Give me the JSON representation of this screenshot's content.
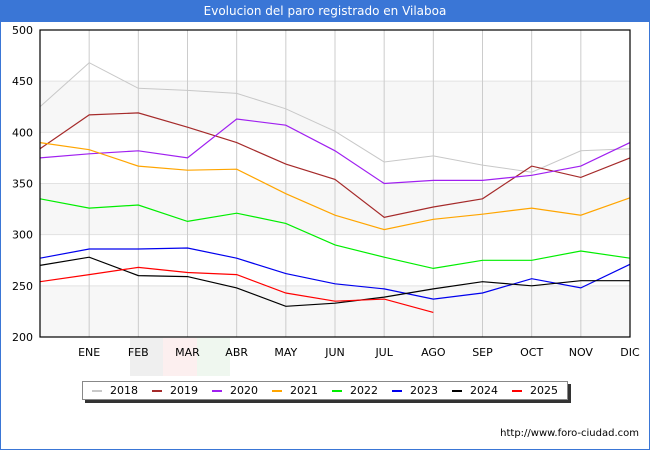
{
  "title": "Evolucion del paro registrado en Vilaboa",
  "source_text": "http://www.foro-ciudad.com",
  "colors": {
    "title_bar": "#3a76d6",
    "band": "#f7f7f7",
    "grid": "#cccccc"
  },
  "chart_data": {
    "type": "line",
    "title": "Evolucion del paro registrado en Vilaboa",
    "xlabel": "",
    "ylabel": "",
    "x_tick_labels": [
      "",
      "ENE",
      "FEB",
      "MAR",
      "ABR",
      "MAY",
      "JUN",
      "JUL",
      "AGO",
      "SEP",
      "OCT",
      "NOV",
      "DIC"
    ],
    "y_ticks": [
      200,
      250,
      300,
      350,
      400,
      450,
      500
    ],
    "ylim": [
      200,
      500
    ],
    "grid": true,
    "legend_position": "bottom",
    "series": [
      {
        "name": "2018",
        "color": "#c8c8c8",
        "values": [
          425,
          468,
          443,
          441,
          438,
          423,
          401,
          371,
          377,
          368,
          361,
          382,
          384
        ]
      },
      {
        "name": "2019",
        "color": "#a52a2a",
        "values": [
          384,
          417,
          419,
          405,
          390,
          369,
          354,
          317,
          327,
          335,
          367,
          356,
          375
        ]
      },
      {
        "name": "2020",
        "color": "#a020f0",
        "values": [
          375,
          379,
          382,
          375,
          413,
          407,
          382,
          350,
          353,
          353,
          358,
          367,
          390
        ]
      },
      {
        "name": "2021",
        "color": "#ffa500",
        "values": [
          390,
          383,
          367,
          363,
          364,
          340,
          319,
          305,
          315,
          320,
          326,
          319,
          336
        ]
      },
      {
        "name": "2022",
        "color": "#00ee00",
        "values": [
          335,
          326,
          329,
          313,
          321,
          311,
          290,
          278,
          267,
          275,
          275,
          284,
          277
        ]
      },
      {
        "name": "2023",
        "color": "#0000ee",
        "values": [
          277,
          286,
          286,
          287,
          277,
          262,
          252,
          247,
          237,
          243,
          257,
          248,
          271
        ]
      },
      {
        "name": "2024",
        "color": "#000000",
        "values": [
          270,
          278,
          260,
          259,
          248,
          230,
          233,
          239,
          247,
          254,
          250,
          255,
          255
        ]
      },
      {
        "name": "2025",
        "color": "#ff0000",
        "values": [
          254,
          261,
          268,
          263,
          261,
          243,
          235,
          237,
          224
        ]
      }
    ]
  }
}
